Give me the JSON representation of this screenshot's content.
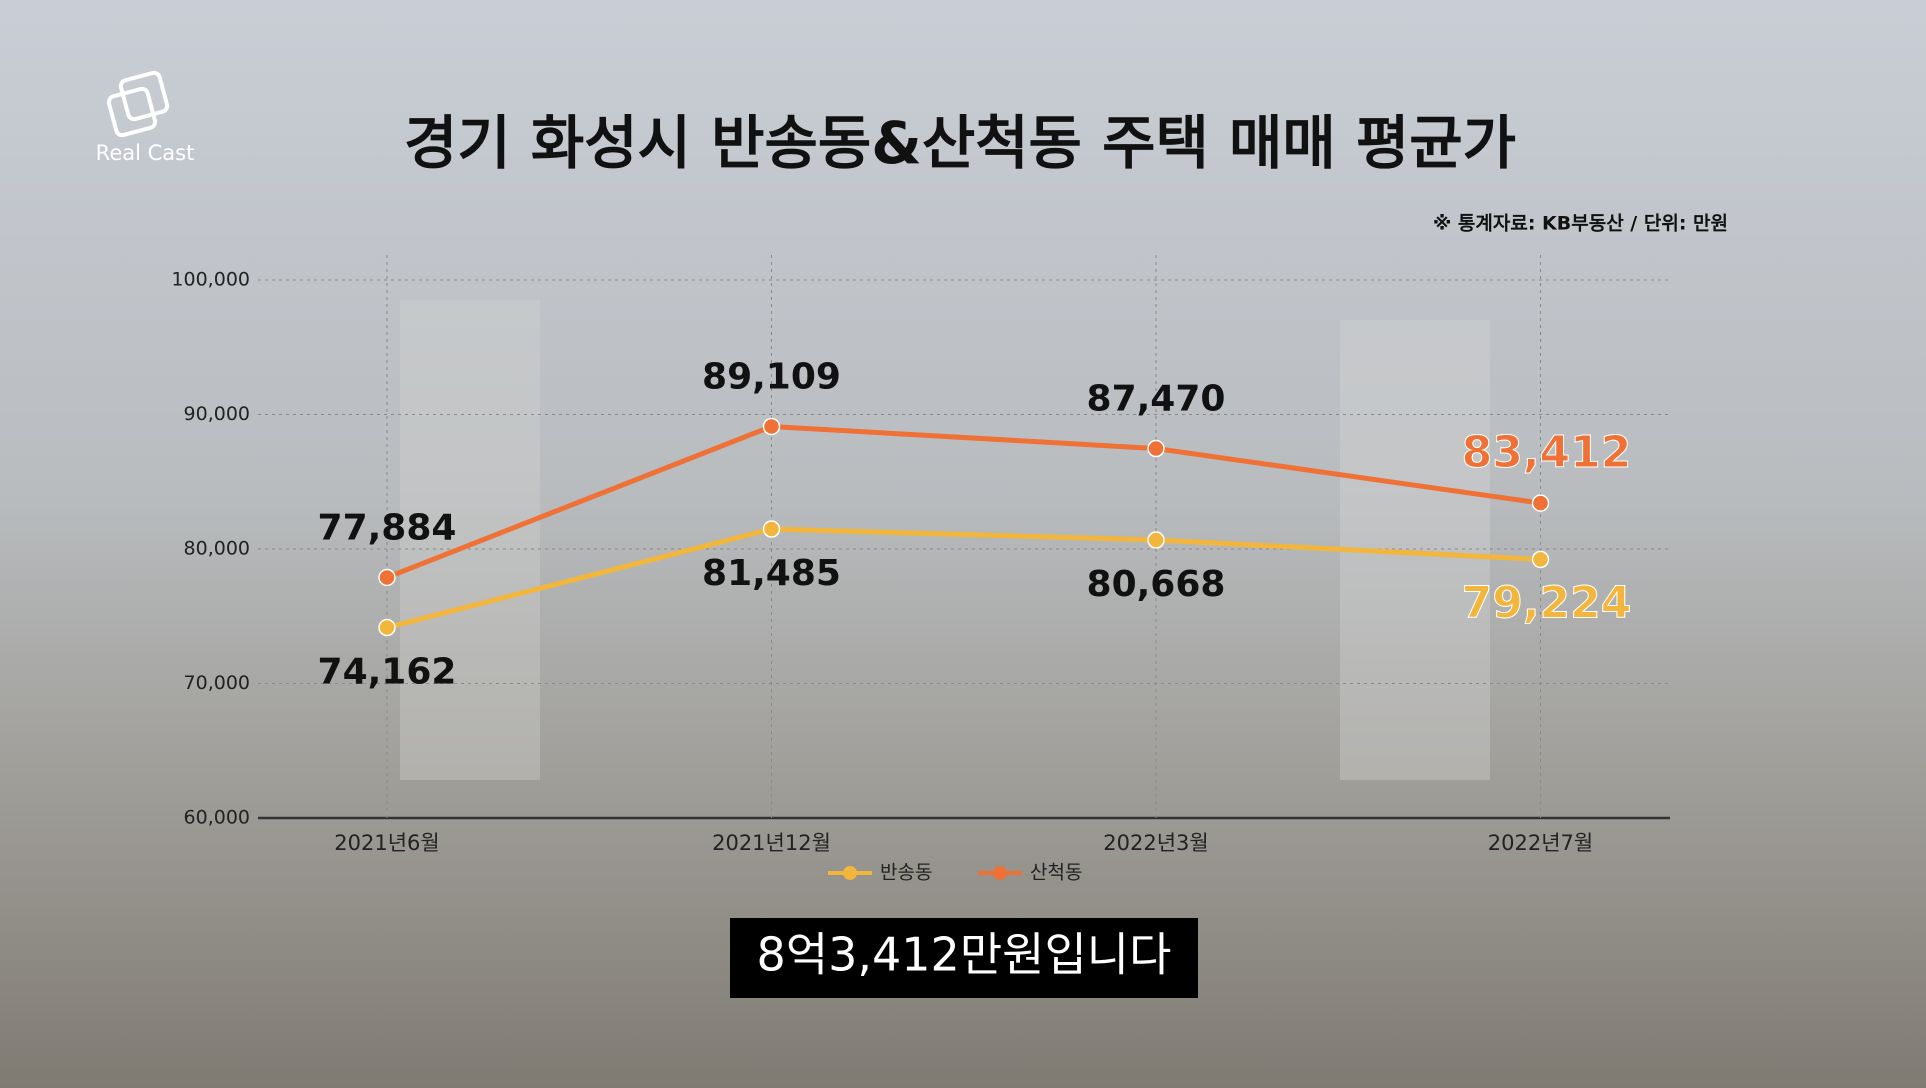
{
  "brand": "Real Cast",
  "caption": "8억3,412만원입니다",
  "chart_data": {
    "type": "line",
    "title": "경기 화성시 반송동&산척동 주택 매매 평균가",
    "subtitle": "※ 통계자료: KB부동산 / 단위: 만원",
    "categories": [
      "2021년6월",
      "2021년12월",
      "2022년3월",
      "2022년7월"
    ],
    "series": [
      {
        "name": "반송동",
        "color": "#f2b63d",
        "values": [
          74162,
          81485,
          80668,
          79224
        ],
        "value_labels": [
          "74,162",
          "81,485",
          "80,668",
          "79,224"
        ]
      },
      {
        "name": "산척동",
        "color": "#ef7135",
        "values": [
          77884,
          89109,
          87470,
          83412
        ],
        "value_labels": [
          "77,884",
          "89,109",
          "87,470",
          "83,412"
        ]
      }
    ],
    "ylim": [
      60000,
      100000
    ],
    "yticks": [
      {
        "value": 60000,
        "label": "60,000"
      },
      {
        "value": 70000,
        "label": "70,000"
      },
      {
        "value": 80000,
        "label": "80,000"
      },
      {
        "value": 90000,
        "label": "90,000"
      },
      {
        "value": 100000,
        "label": "100,000"
      }
    ],
    "grid": true,
    "legend": "bottom"
  }
}
